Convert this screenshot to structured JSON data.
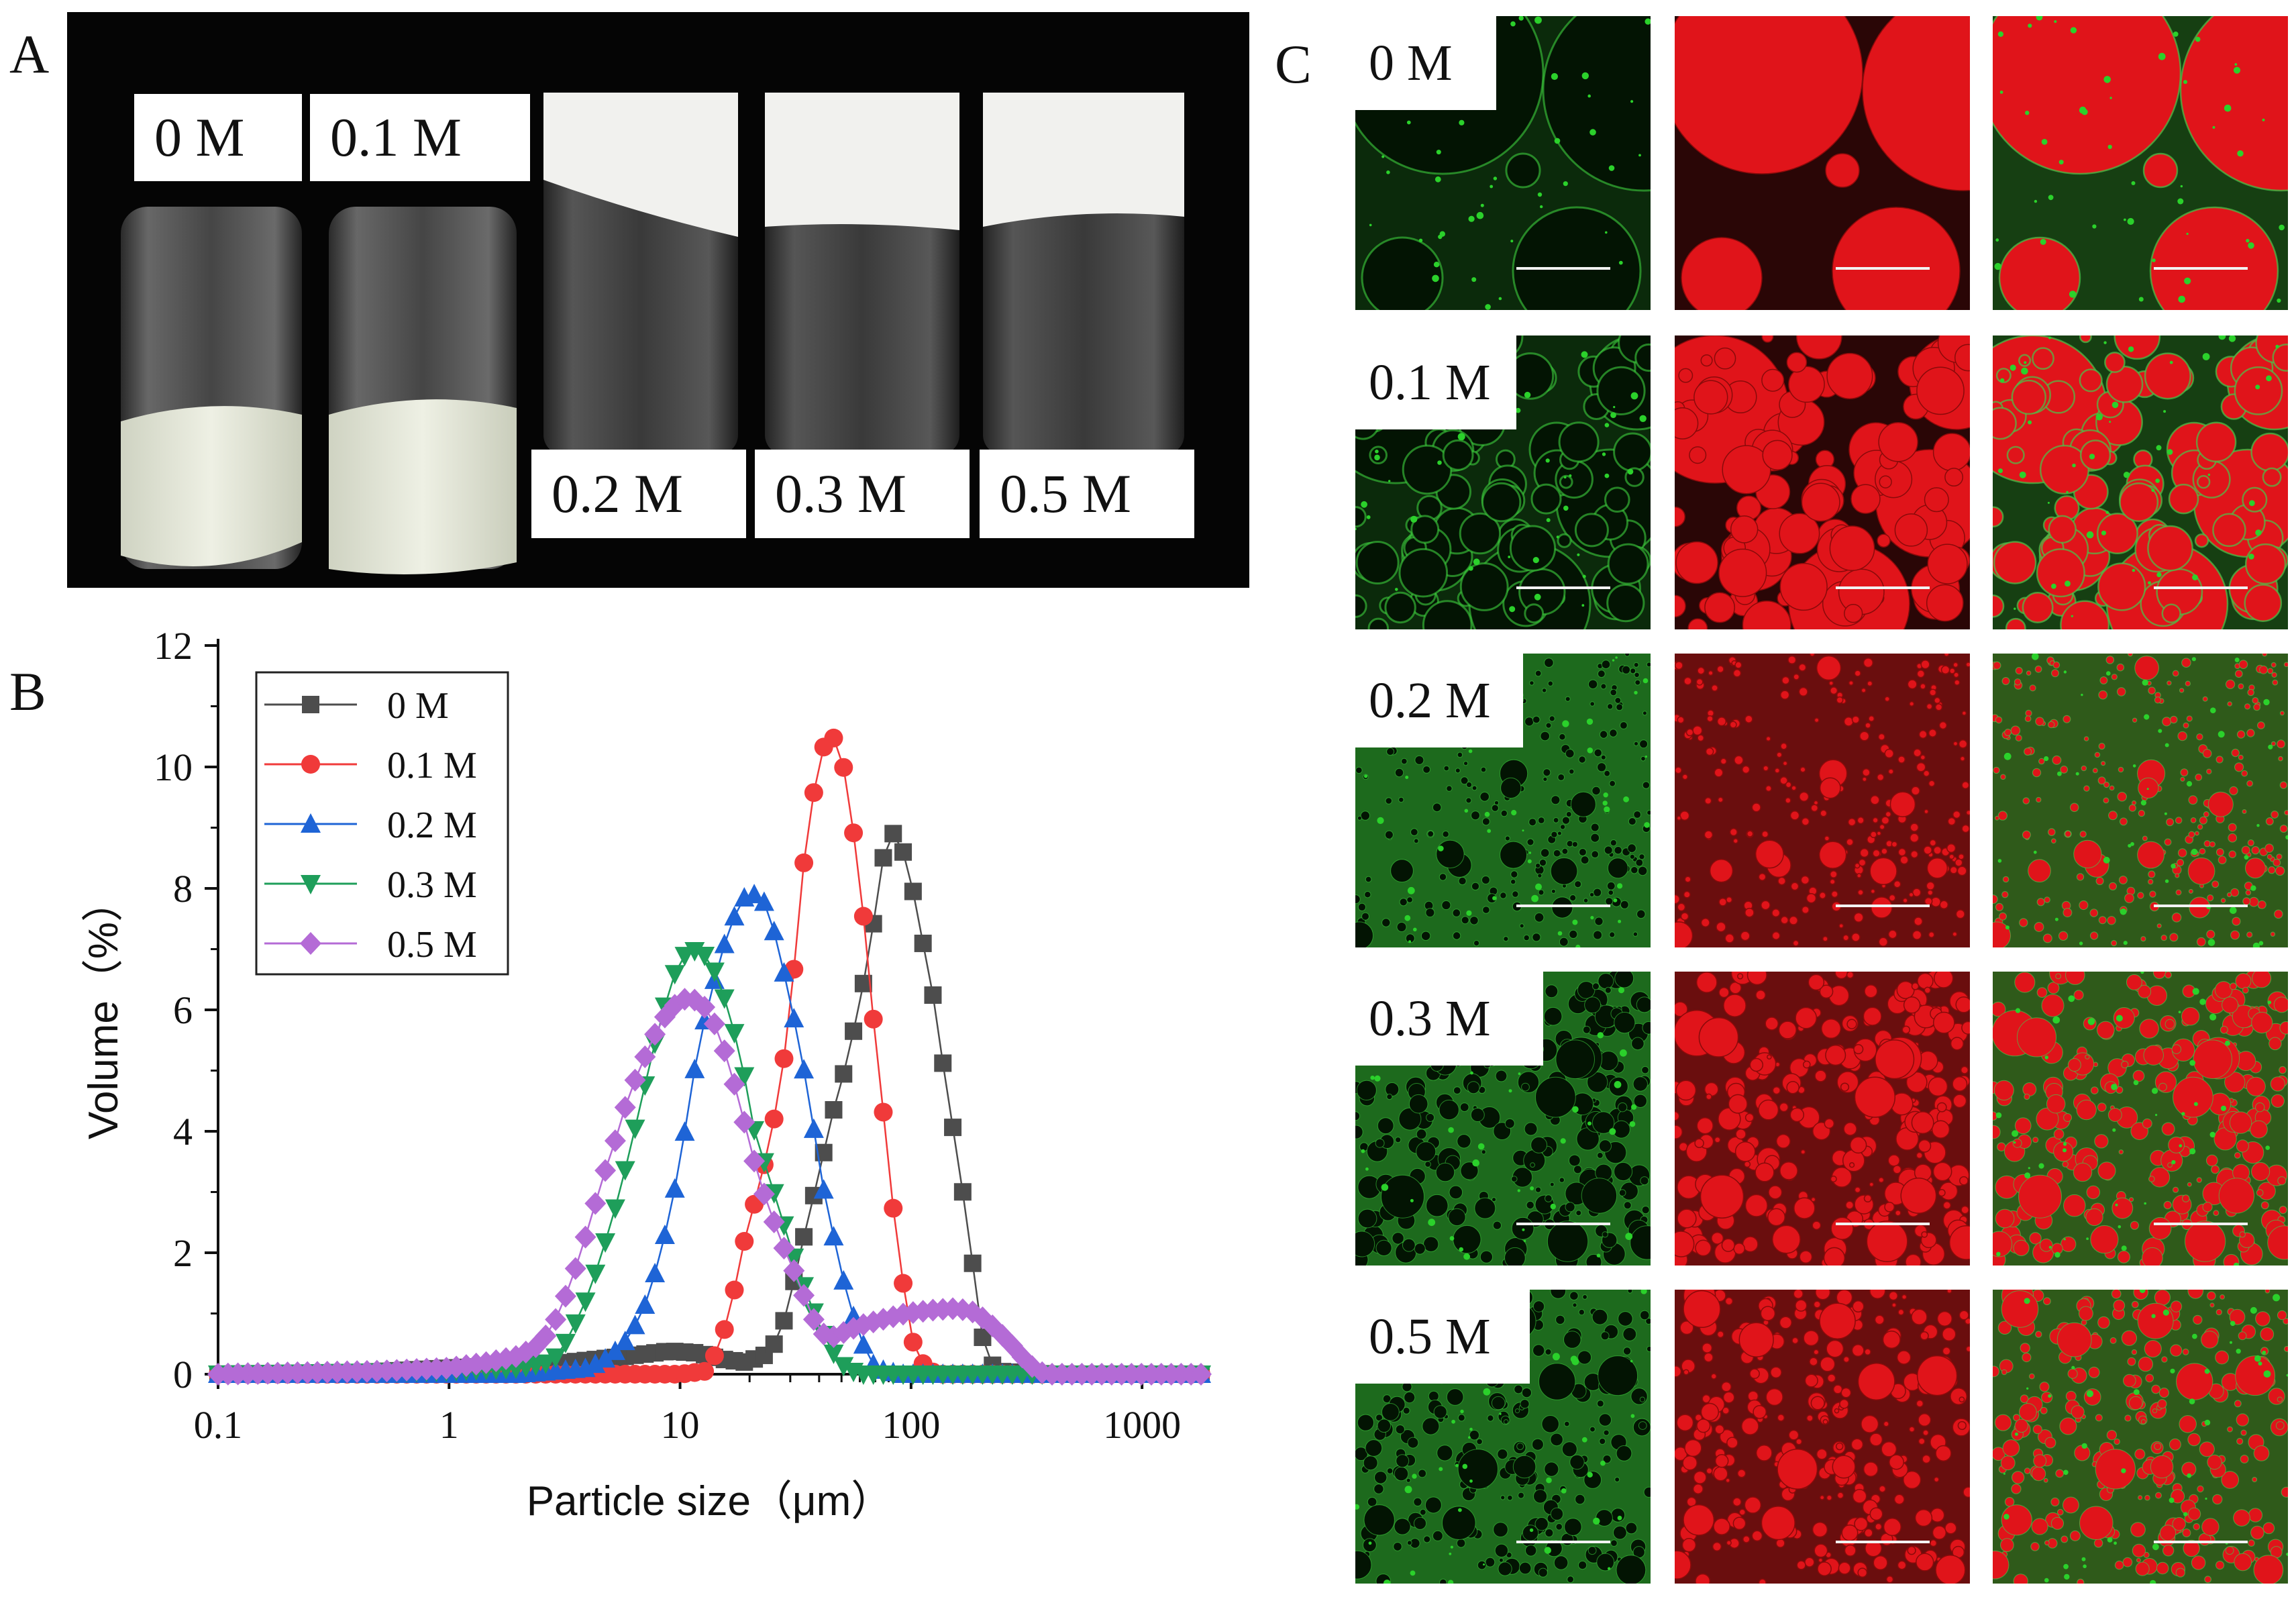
{
  "figure": {
    "panel_a_letter": "A",
    "panel_b_letter": "B",
    "panel_c_letter": "C"
  },
  "panel_a": {
    "vials": [
      {
        "label": "0 M",
        "state": "settled cream at bottom"
      },
      {
        "label": "0.1 M",
        "state": "settled cream at bottom"
      },
      {
        "label": "0.2 M",
        "state": "stable gel at top"
      },
      {
        "label": "0.3 M",
        "state": "stable gel at top"
      },
      {
        "label": "0.5 M",
        "state": "stable gel at top"
      }
    ]
  },
  "chart_data": {
    "type": "line",
    "title": "",
    "xlabel": "Particle size（μm）",
    "ylabel": "Volume（%）",
    "xscale": "log",
    "xlim": [
      0.1,
      1800
    ],
    "ylim": [
      0,
      12
    ],
    "xticks": [
      0.1,
      1,
      10,
      100,
      1000
    ],
    "xtick_labels": [
      "0.1",
      "1",
      "10",
      "100",
      "1000"
    ],
    "yticks": [
      0,
      2,
      4,
      6,
      8,
      10,
      12
    ],
    "ytick_labels": [
      "0",
      "2",
      "4",
      "6",
      "8",
      "10",
      "12"
    ],
    "grid": false,
    "legend": "top-left",
    "series": [
      {
        "name": "0  M",
        "color": "#4d4d4d",
        "marker": "square",
        "points": [
          [
            0.1,
            0
          ],
          [
            0.3,
            0
          ],
          [
            1,
            0.1
          ],
          [
            3,
            0.18
          ],
          [
            6,
            0.3
          ],
          [
            9,
            0.38
          ],
          [
            12,
            0.35
          ],
          [
            15,
            0.25
          ],
          [
            19,
            0.2
          ],
          [
            23,
            0.3
          ],
          [
            27,
            0.6
          ],
          [
            31,
            1.5
          ],
          [
            35,
            2.4
          ],
          [
            40,
            3.3
          ],
          [
            45,
            4.2
          ],
          [
            50,
            4.8
          ],
          [
            56,
            5.6
          ],
          [
            62,
            6.4
          ],
          [
            68,
            7.3
          ],
          [
            74,
            8.3
          ],
          [
            80,
            8.95
          ],
          [
            88,
            8.85
          ],
          [
            98,
            8.3
          ],
          [
            110,
            7.3
          ],
          [
            125,
            6.2
          ],
          [
            140,
            4.9
          ],
          [
            160,
            3.5
          ],
          [
            180,
            2.2
          ],
          [
            200,
            0.7
          ],
          [
            230,
            0.05
          ],
          [
            400,
            0
          ],
          [
            1800,
            0
          ]
        ]
      },
      {
        "name": "0.1 M",
        "color": "#f03a3a",
        "marker": "circle",
        "points": [
          [
            0.1,
            0
          ],
          [
            2,
            0
          ],
          [
            5,
            0
          ],
          [
            10,
            0
          ],
          [
            13,
            0.05
          ],
          [
            15,
            0.5
          ],
          [
            17,
            1.3
          ],
          [
            19,
            2.2
          ],
          [
            22,
            3.1
          ],
          [
            25,
            4.0
          ],
          [
            28,
            5.1
          ],
          [
            31,
            6.6
          ],
          [
            34,
            8.3
          ],
          [
            38,
            9.6
          ],
          [
            42,
            10.35
          ],
          [
            46,
            10.5
          ],
          [
            51,
            10.0
          ],
          [
            56,
            9.0
          ],
          [
            62,
            7.6
          ],
          [
            68,
            6.0
          ],
          [
            75,
            4.5
          ],
          [
            82,
            3.0
          ],
          [
            90,
            1.8
          ],
          [
            100,
            0.6
          ],
          [
            115,
            0.1
          ],
          [
            130,
            0
          ],
          [
            1800,
            0
          ]
        ]
      },
      {
        "name": "0.2 M",
        "color": "#1e64d6",
        "marker": "triangle-up",
        "points": [
          [
            0.1,
            0
          ],
          [
            2,
            0
          ],
          [
            4,
            0.1
          ],
          [
            5,
            0.3
          ],
          [
            6,
            0.6
          ],
          [
            7,
            1.1
          ],
          [
            8,
            1.8
          ],
          [
            9,
            2.6
          ],
          [
            10,
            3.5
          ],
          [
            11,
            4.5
          ],
          [
            12,
            5.4
          ],
          [
            13.5,
            6.2
          ],
          [
            15,
            6.9
          ],
          [
            17,
            7.5
          ],
          [
            19,
            7.85
          ],
          [
            21,
            7.9
          ],
          [
            23,
            7.8
          ],
          [
            26,
            7.2
          ],
          [
            29,
            6.4
          ],
          [
            33,
            5.4
          ],
          [
            37,
            4.3
          ],
          [
            41,
            3.2
          ],
          [
            46,
            2.3
          ],
          [
            52,
            1.4
          ],
          [
            60,
            0.6
          ],
          [
            70,
            0.1
          ],
          [
            90,
            0
          ],
          [
            1800,
            0
          ]
        ]
      },
      {
        "name": "0.3 M",
        "color": "#1e9e5a",
        "marker": "triangle-down",
        "points": [
          [
            0.1,
            0
          ],
          [
            1,
            0.05
          ],
          [
            2,
            0.1
          ],
          [
            2.8,
            0.2
          ],
          [
            3.3,
            0.6
          ],
          [
            4,
            1.3
          ],
          [
            4.6,
            2.0
          ],
          [
            5.3,
            2.8
          ],
          [
            6,
            3.6
          ],
          [
            6.8,
            4.5
          ],
          [
            7.6,
            5.3
          ],
          [
            8.5,
            6.0
          ],
          [
            9.5,
            6.6
          ],
          [
            10.5,
            6.9
          ],
          [
            12,
            7.0
          ],
          [
            13.5,
            6.8
          ],
          [
            15,
            6.4
          ],
          [
            17,
            5.7
          ],
          [
            19,
            4.9
          ],
          [
            21,
            4.0
          ],
          [
            24,
            3.3
          ],
          [
            27,
            2.7
          ],
          [
            30,
            2.1
          ],
          [
            34,
            1.5
          ],
          [
            39,
            0.9
          ],
          [
            45,
            0.4
          ],
          [
            52,
            0.1
          ],
          [
            60,
            0
          ],
          [
            1800,
            0
          ]
        ]
      },
      {
        "name": "0.5 M",
        "color": "#b46bd6",
        "marker": "diamond",
        "points": [
          [
            0.1,
            0
          ],
          [
            0.5,
            0.05
          ],
          [
            1,
            0.1
          ],
          [
            1.5,
            0.2
          ],
          [
            2,
            0.3
          ],
          [
            2.5,
            0.5
          ],
          [
            3,
            1.0
          ],
          [
            3.5,
            1.7
          ],
          [
            4,
            2.4
          ],
          [
            4.6,
            3.2
          ],
          [
            5.3,
            3.9
          ],
          [
            6,
            4.6
          ],
          [
            7,
            5.2
          ],
          [
            8,
            5.7
          ],
          [
            9,
            6.0
          ],
          [
            10,
            6.15
          ],
          [
            11,
            6.2
          ],
          [
            12.5,
            6.1
          ],
          [
            14,
            5.8
          ],
          [
            16,
            5.2
          ],
          [
            18,
            4.5
          ],
          [
            20,
            3.8
          ],
          [
            22,
            3.2
          ],
          [
            25,
            2.6
          ],
          [
            28,
            2.1
          ],
          [
            32,
            1.6
          ],
          [
            36,
            1.1
          ],
          [
            40,
            0.7
          ],
          [
            45,
            0.6
          ],
          [
            52,
            0.7
          ],
          [
            60,
            0.8
          ],
          [
            75,
            0.9
          ],
          [
            95,
            1.0
          ],
          [
            120,
            1.05
          ],
          [
            150,
            1.08
          ],
          [
            180,
            1.05
          ],
          [
            210,
            0.9
          ],
          [
            240,
            0.7
          ],
          [
            270,
            0.5
          ],
          [
            300,
            0.3
          ],
          [
            340,
            0.1
          ],
          [
            380,
            0
          ],
          [
            1800,
            0
          ]
        ]
      }
    ]
  },
  "panel_c": {
    "rows": [
      {
        "label": "0 M"
      },
      {
        "label": "0.1 M"
      },
      {
        "label": "0.2 M"
      },
      {
        "label": "0.3 M"
      },
      {
        "label": "0.5 M"
      }
    ],
    "channels": [
      "green",
      "red",
      "merged"
    ],
    "colors": {
      "green": "#2bd12b",
      "red": "#e0141a",
      "dark_green": "#0b2a0b",
      "dark_red": "#2a0606"
    }
  }
}
